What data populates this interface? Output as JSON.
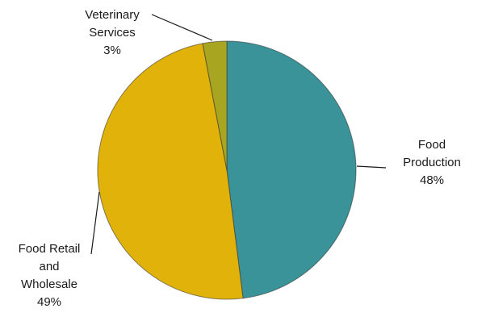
{
  "chart_data": {
    "type": "pie",
    "title": "",
    "slices": [
      {
        "label_lines": [
          "Food",
          "Production"
        ],
        "value_label": "48%",
        "value": 48,
        "color": "#3a9399"
      },
      {
        "label_lines": [
          "Food Retail",
          "and",
          "Wholesale"
        ],
        "value_label": "49%",
        "value": 49,
        "color": "#e0b20a"
      },
      {
        "label_lines": [
          "Veterinary",
          "Services"
        ],
        "value_label": "3%",
        "value": 3,
        "color": "#a8a521"
      }
    ],
    "start_angle_deg": 0,
    "direction": "clockwise",
    "legend": "none"
  }
}
